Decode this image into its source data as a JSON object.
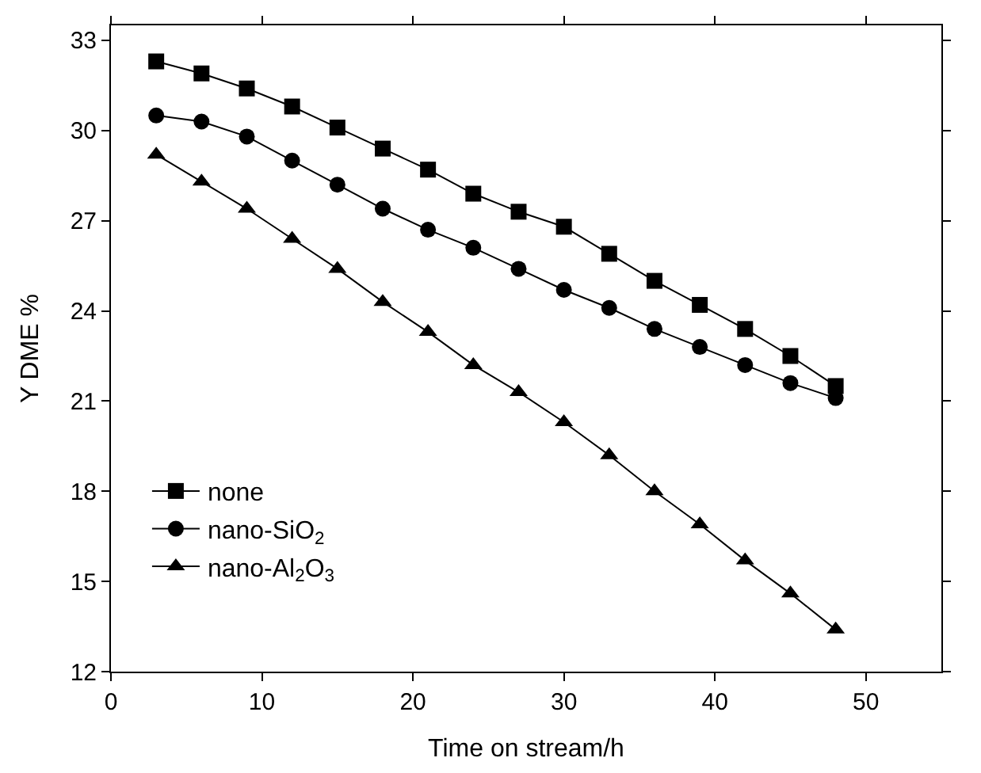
{
  "chart_data": {
    "type": "line",
    "xlabel": "Time on stream/h",
    "ylabel": "Y DME %",
    "x": [
      3,
      6,
      9,
      12,
      15,
      18,
      21,
      24,
      27,
      30,
      33,
      36,
      39,
      42,
      45,
      48
    ],
    "series": [
      {
        "name": "none",
        "color": "#000000",
        "marker": "square",
        "values": [
          32.3,
          31.9,
          31.4,
          30.8,
          30.1,
          29.4,
          28.7,
          27.9,
          27.3,
          26.8,
          25.9,
          25.0,
          24.2,
          23.4,
          22.5,
          21.5
        ]
      },
      {
        "name": "nano-SiO$_{2}$",
        "color": "#000000",
        "marker": "circle",
        "values": [
          30.5,
          30.3,
          29.8,
          29.0,
          28.2,
          27.4,
          26.7,
          26.1,
          25.4,
          24.7,
          24.1,
          23.4,
          22.8,
          22.2,
          21.6,
          21.1
        ]
      },
      {
        "name": "nano-Al$_{2}$O$_{3}$",
        "color": "#000000",
        "marker": "triangle",
        "values": [
          29.2,
          28.3,
          27.4,
          26.4,
          25.4,
          24.3,
          23.3,
          22.2,
          21.3,
          20.3,
          19.2,
          18.0,
          16.9,
          15.7,
          14.6,
          13.4
        ]
      }
    ],
    "xlim": [
      0,
      55
    ],
    "xticks": [
      0,
      10,
      20,
      30,
      40,
      50
    ],
    "ylim": [
      12,
      33.5
    ],
    "yticks": [
      12,
      15,
      18,
      21,
      24,
      27,
      30,
      33
    ],
    "legend": "bottom left",
    "line_style": "solid"
  }
}
